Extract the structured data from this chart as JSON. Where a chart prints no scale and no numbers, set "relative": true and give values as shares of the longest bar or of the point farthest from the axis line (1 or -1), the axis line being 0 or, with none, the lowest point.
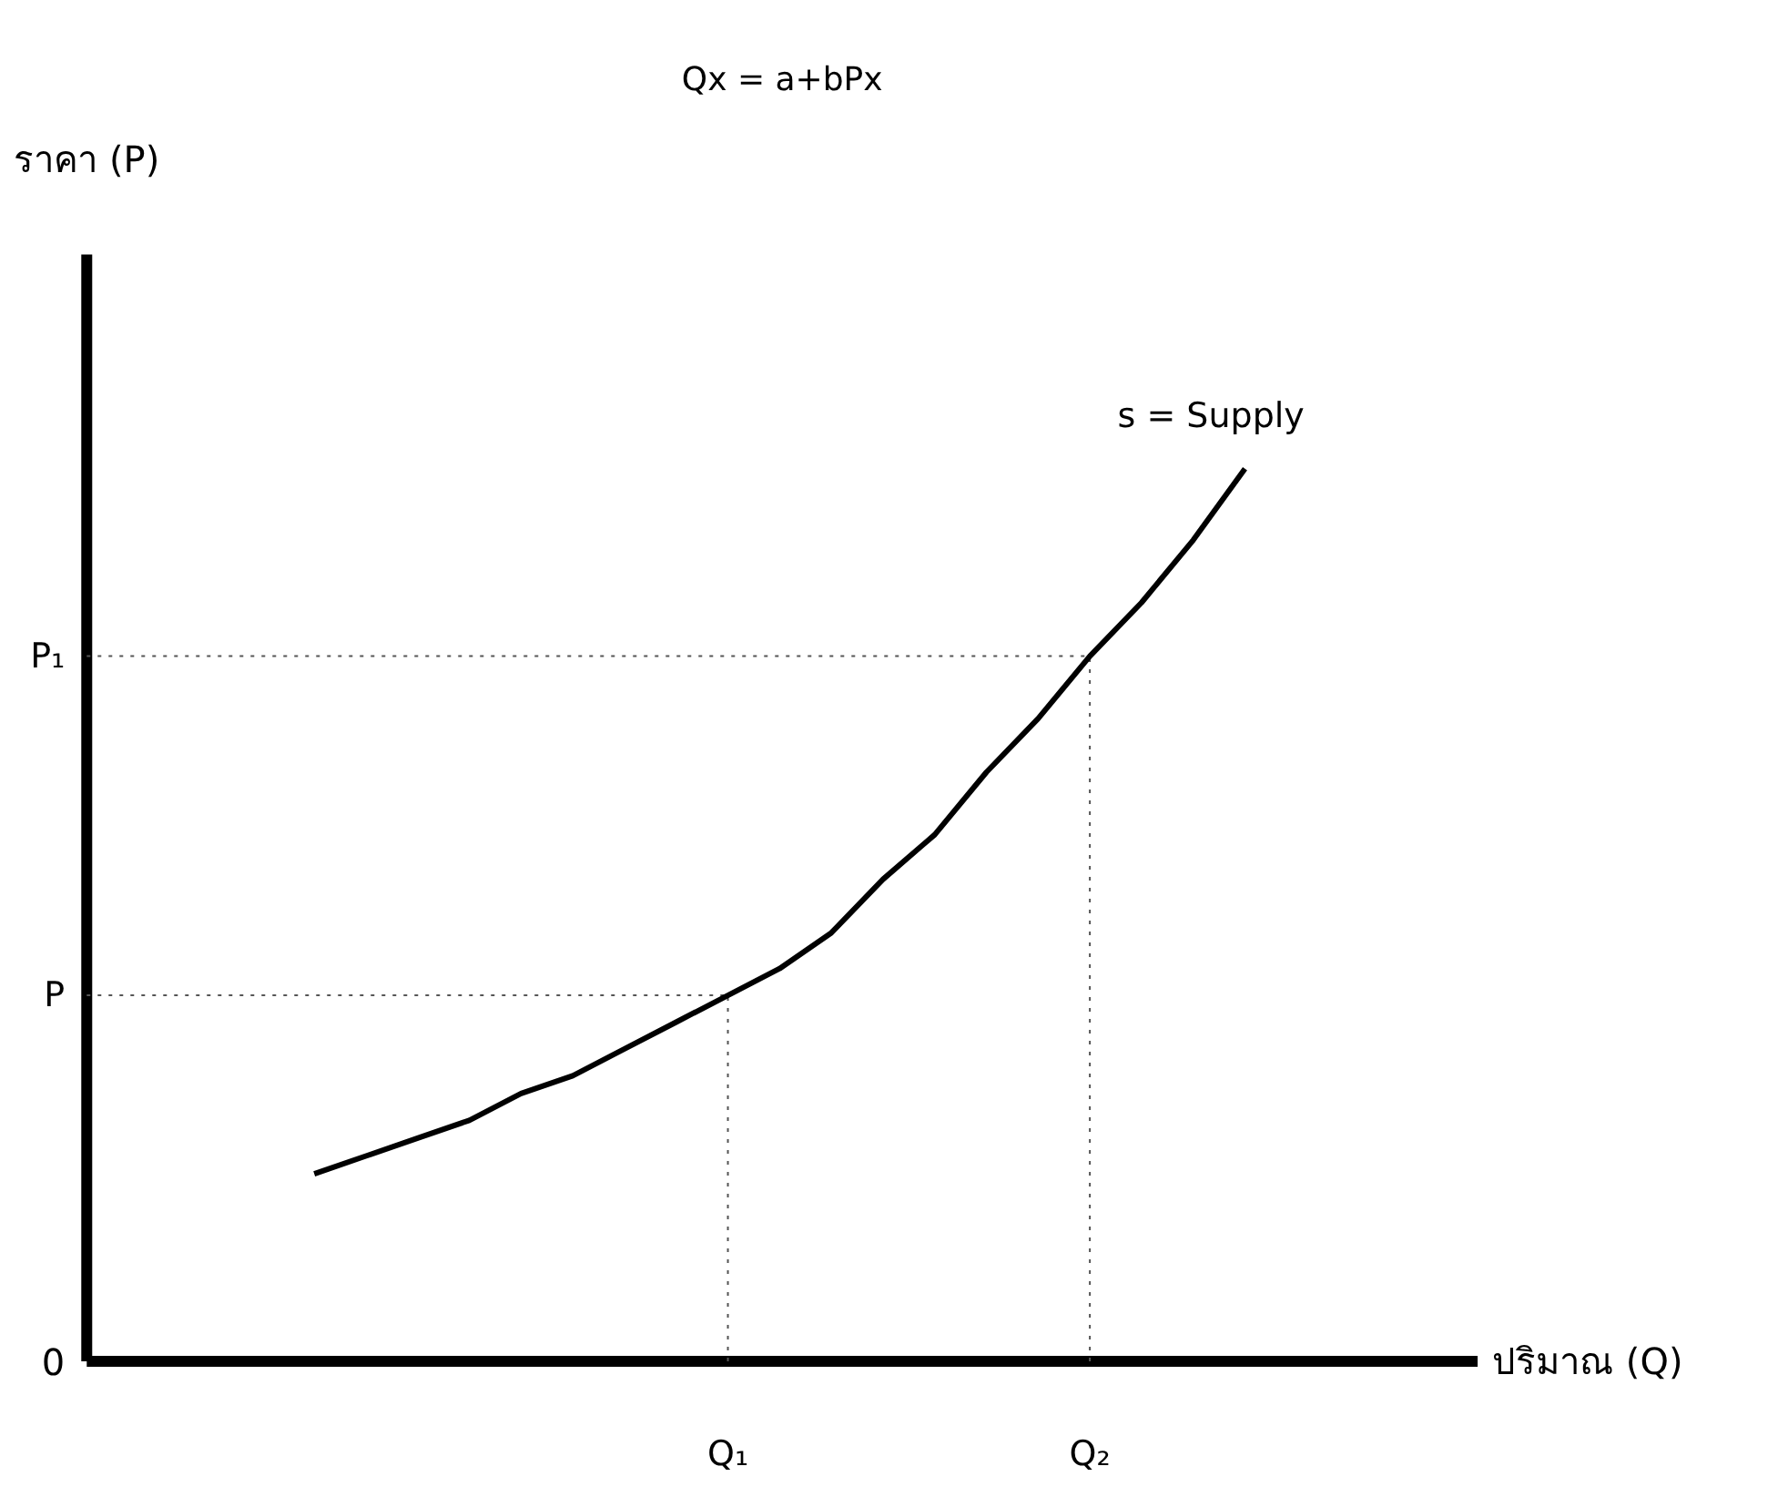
{
  "chart_data": {
    "type": "line",
    "title": "Qx = a+bPx",
    "relative": true,
    "categories": [
      null,
      null,
      null,
      null,
      null,
      null,
      null,
      null,
      "Q₁",
      null,
      null,
      null,
      null,
      null,
      null,
      "Q₂",
      null,
      null,
      null
    ],
    "series": [
      {
        "name": "s = Supply",
        "color": "#000000",
        "values": [
          0.21,
          0.23,
          0.25,
          0.27,
          0.3,
          0.32,
          0.35,
          0.38,
          0.41,
          0.44,
          0.48,
          0.54,
          0.59,
          0.66,
          0.72,
          0.79,
          0.85,
          0.92,
          1
        ]
      }
    ],
    "ref_lines": [
      {
        "axis": "x",
        "value": "Q₁",
        "color": "#555555",
        "line_style": "dotted"
      },
      {
        "axis": "x",
        "value": "Q₂",
        "color": "#555555",
        "line_style": "dotted"
      },
      {
        "axis": "y",
        "value": 0.41,
        "label": "P",
        "color": "#555555",
        "line_style": "dotted"
      },
      {
        "axis": "y",
        "value": 0.79,
        "label": "P₁",
        "color": "#555555",
        "line_style": "dotted"
      }
    ],
    "annotations": [
      "0",
      "ราคา (P)",
      "ปริมาณ (Q)"
    ],
    "line_style": "solid",
    "marker": "none"
  }
}
